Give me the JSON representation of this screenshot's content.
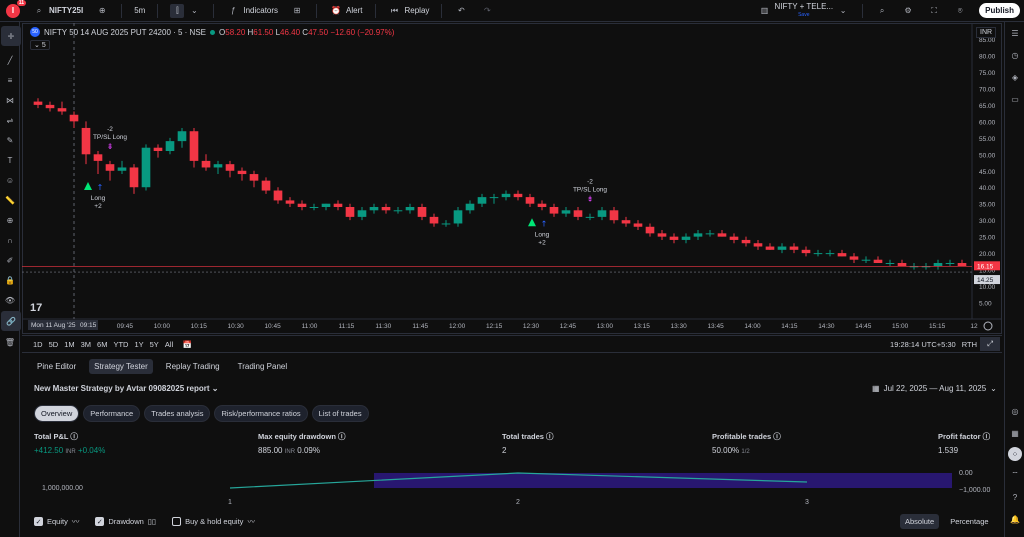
{
  "topbar": {
    "notif_count": "11",
    "symbol": "NIFTY25I",
    "interval": "5m",
    "indicators": "Indicators",
    "alert": "Alert",
    "replay": "Replay",
    "layout_name": "NIFTY + TELE...",
    "layout_sub": "Save",
    "publish": "Publish"
  },
  "chart": {
    "title": "NIFTY 50 14 AUG 2025 PUT 24200 · 5 · NSE",
    "ohlc": {
      "o_label": "O",
      "o": "58.20",
      "h_label": "H",
      "h": "61.50",
      "l_label": "L",
      "l": "46.40",
      "c_label": "C",
      "c": "47.50",
      "chg": "−12.60 (−20.97%)"
    },
    "collapse_count": "5",
    "currency": "INR",
    "price_badge_red": "16.15",
    "price_badge_gray": "14.25",
    "crosshair_date": "Mon 11 Aug '25",
    "crosshair_time": "09:15",
    "clock": "19:28:14 UTC+5:30",
    "rth": "RTH"
  },
  "chart_data": {
    "type": "candlestick",
    "ylim": [
      0,
      85
    ],
    "yticks": [
      "85.00",
      "80.00",
      "75.00",
      "70.00",
      "65.00",
      "60.00",
      "55.00",
      "50.00",
      "45.00",
      "40.00",
      "35.00",
      "30.00",
      "25.00",
      "20.00",
      "15.00",
      "10.00",
      "5.00"
    ],
    "xticks": [
      "09:30",
      "09:45",
      "10:00",
      "10:15",
      "10:30",
      "10:45",
      "11:00",
      "11:15",
      "11:30",
      "11:45",
      "12:00",
      "12:15",
      "12:30",
      "12:45",
      "13:00",
      "13:15",
      "13:30",
      "13:45",
      "14:00",
      "14:15",
      "14:30",
      "14:45",
      "15:00",
      "15:15",
      "12"
    ],
    "candles": [
      [
        66,
        67,
        64,
        65
      ],
      [
        65,
        66,
        63,
        64
      ],
      [
        64,
        66,
        62,
        63
      ],
      [
        62,
        63,
        58,
        60
      ],
      [
        58,
        60,
        47,
        50
      ],
      [
        50,
        51,
        44,
        48
      ],
      [
        47,
        48,
        42,
        45
      ],
      [
        45,
        48,
        44,
        46
      ],
      [
        46,
        47,
        38,
        40
      ],
      [
        40,
        53,
        39,
        52
      ],
      [
        52,
        53,
        49,
        51
      ],
      [
        51,
        55,
        50,
        54
      ],
      [
        54,
        58,
        52,
        57
      ],
      [
        57,
        58,
        46,
        48
      ],
      [
        48,
        50,
        45,
        46
      ],
      [
        46,
        48,
        44,
        47
      ],
      [
        47,
        48,
        43,
        45
      ],
      [
        45,
        46,
        42,
        44
      ],
      [
        44,
        45,
        40,
        42
      ],
      [
        42,
        43,
        38,
        39
      ],
      [
        39,
        40,
        35,
        36
      ],
      [
        36,
        37,
        34,
        35
      ],
      [
        35,
        36,
        33,
        34
      ],
      [
        34,
        35,
        33,
        34
      ],
      [
        34,
        35,
        33,
        35
      ],
      [
        35,
        36,
        33,
        34
      ],
      [
        34,
        35,
        30,
        31
      ],
      [
        31,
        34,
        30,
        33
      ],
      [
        33,
        35,
        32,
        34
      ],
      [
        34,
        35,
        32,
        33
      ],
      [
        33,
        34,
        32,
        33
      ],
      [
        33,
        35,
        32,
        34
      ],
      [
        34,
        35,
        30,
        31
      ],
      [
        31,
        32,
        28,
        29
      ],
      [
        29,
        30,
        28,
        29
      ],
      [
        29,
        34,
        28,
        33
      ],
      [
        33,
        36,
        32,
        35
      ],
      [
        35,
        38,
        34,
        37
      ],
      [
        37,
        38,
        35,
        37
      ],
      [
        37,
        39,
        36,
        38
      ],
      [
        38,
        39,
        36,
        37
      ],
      [
        37,
        38,
        34,
        35
      ],
      [
        35,
        36,
        33,
        34
      ],
      [
        34,
        35,
        31,
        32
      ],
      [
        32,
        34,
        31,
        33
      ],
      [
        33,
        34,
        30,
        31
      ],
      [
        31,
        32,
        30,
        31
      ],
      [
        31,
        34,
        30,
        33
      ],
      [
        33,
        34,
        29,
        30
      ],
      [
        30,
        31,
        28,
        29
      ],
      [
        29,
        30,
        27,
        28
      ],
      [
        28,
        29,
        25,
        26
      ],
      [
        26,
        27,
        24,
        25
      ],
      [
        25,
        26,
        23,
        24
      ],
      [
        24,
        26,
        23,
        25
      ],
      [
        25,
        27,
        24,
        26
      ],
      [
        26,
        27,
        25,
        26
      ],
      [
        26,
        27,
        25,
        25
      ],
      [
        25,
        26,
        23,
        24
      ],
      [
        24,
        25,
        22,
        23
      ],
      [
        23,
        24,
        21,
        22
      ],
      [
        22,
        23,
        21,
        21
      ],
      [
        21,
        23,
        20,
        22
      ],
      [
        22,
        23,
        20,
        21
      ],
      [
        21,
        22,
        19,
        20
      ],
      [
        20,
        21,
        19,
        20
      ],
      [
        20,
        21,
        19,
        20
      ],
      [
        20,
        21,
        19,
        19
      ],
      [
        19,
        20,
        17,
        18
      ],
      [
        18,
        19,
        17,
        18
      ],
      [
        18,
        19,
        17,
        17
      ],
      [
        17,
        18,
        16,
        17
      ],
      [
        17,
        18,
        16,
        16
      ],
      [
        16,
        17,
        15,
        16
      ],
      [
        16,
        17,
        15,
        16
      ],
      [
        16,
        18,
        15,
        17
      ],
      [
        17,
        18,
        16,
        17
      ],
      [
        17,
        18,
        16,
        16
      ]
    ],
    "signals": [
      {
        "text_top": "-2",
        "text_top2": "TP/SL Long",
        "candle": 6
      },
      {
        "text_bot": "Long",
        "text_bot2": "+2",
        "candle": 5
      },
      {
        "text_top": "-2",
        "text_top2": "TP/SL Long",
        "candle": 46
      },
      {
        "text_bot": "Long",
        "text_bot2": "+2",
        "candle": 42
      }
    ]
  },
  "timeframes": [
    "1D",
    "5D",
    "1M",
    "3M",
    "6M",
    "YTD",
    "1Y",
    "5Y",
    "All"
  ],
  "panel": {
    "tabs": [
      "Pine Editor",
      "Strategy Tester",
      "Replay Trading",
      "Trading Panel"
    ],
    "active_tab": 1,
    "report_title": "New Master Strategy by Avtar 09082025 report",
    "date_range": "Jul 22, 2025 — Aug 11, 2025",
    "subtabs": [
      "Overview",
      "Performance",
      "Trades analysis",
      "Risk/performance ratios",
      "List of trades"
    ],
    "metrics": {
      "pnl_label": "Total P&L",
      "pnl_value": "+412.50",
      "pnl_unit": "INR",
      "pnl_pct": "+0.04%",
      "dd_label": "Max equity drawdown",
      "dd_value": "885.00",
      "dd_unit": "INR",
      "dd_pct": "0.09%",
      "trades_label": "Total trades",
      "trades_value": "2",
      "prof_label": "Profitable trades",
      "prof_value": "50.00%",
      "prof_sub": "1/2",
      "pf_label": "Profit factor",
      "pf_value": "1.539"
    },
    "equity_chart": {
      "left_label": "1,000,000.00",
      "right_top": "0.00",
      "right_bot": "−1,000.00",
      "x": [
        "1",
        "2",
        "3"
      ]
    },
    "options": {
      "equity": "Equity",
      "drawdown": "Drawdown",
      "buyhold": "Buy & hold equity"
    },
    "modes": [
      "Absolute",
      "Percentage"
    ]
  }
}
